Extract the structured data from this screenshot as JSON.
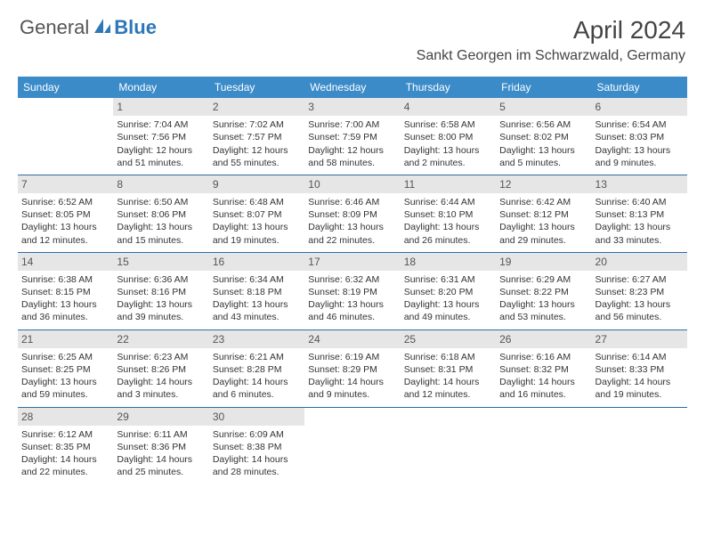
{
  "logo": {
    "part1": "General",
    "part2": "Blue"
  },
  "title": "April 2024",
  "location": "Sankt Georgen im Schwarzwald, Germany",
  "colors": {
    "header_bg": "#3b8bc9",
    "header_text": "#ffffff",
    "daynum_bg": "#e6e6e6",
    "row_border": "#2e6da4",
    "brand_blue": "#2e77b8",
    "text": "#333333"
  },
  "weekdays": [
    "Sunday",
    "Monday",
    "Tuesday",
    "Wednesday",
    "Thursday",
    "Friday",
    "Saturday"
  ],
  "grid": {
    "first_weekday_index": 1,
    "days": [
      {
        "n": 1,
        "sr": "7:04 AM",
        "ss": "7:56 PM",
        "dl": "12 hours and 51 minutes."
      },
      {
        "n": 2,
        "sr": "7:02 AM",
        "ss": "7:57 PM",
        "dl": "12 hours and 55 minutes."
      },
      {
        "n": 3,
        "sr": "7:00 AM",
        "ss": "7:59 PM",
        "dl": "12 hours and 58 minutes."
      },
      {
        "n": 4,
        "sr": "6:58 AM",
        "ss": "8:00 PM",
        "dl": "13 hours and 2 minutes."
      },
      {
        "n": 5,
        "sr": "6:56 AM",
        "ss": "8:02 PM",
        "dl": "13 hours and 5 minutes."
      },
      {
        "n": 6,
        "sr": "6:54 AM",
        "ss": "8:03 PM",
        "dl": "13 hours and 9 minutes."
      },
      {
        "n": 7,
        "sr": "6:52 AM",
        "ss": "8:05 PM",
        "dl": "13 hours and 12 minutes."
      },
      {
        "n": 8,
        "sr": "6:50 AM",
        "ss": "8:06 PM",
        "dl": "13 hours and 15 minutes."
      },
      {
        "n": 9,
        "sr": "6:48 AM",
        "ss": "8:07 PM",
        "dl": "13 hours and 19 minutes."
      },
      {
        "n": 10,
        "sr": "6:46 AM",
        "ss": "8:09 PM",
        "dl": "13 hours and 22 minutes."
      },
      {
        "n": 11,
        "sr": "6:44 AM",
        "ss": "8:10 PM",
        "dl": "13 hours and 26 minutes."
      },
      {
        "n": 12,
        "sr": "6:42 AM",
        "ss": "8:12 PM",
        "dl": "13 hours and 29 minutes."
      },
      {
        "n": 13,
        "sr": "6:40 AM",
        "ss": "8:13 PM",
        "dl": "13 hours and 33 minutes."
      },
      {
        "n": 14,
        "sr": "6:38 AM",
        "ss": "8:15 PM",
        "dl": "13 hours and 36 minutes."
      },
      {
        "n": 15,
        "sr": "6:36 AM",
        "ss": "8:16 PM",
        "dl": "13 hours and 39 minutes."
      },
      {
        "n": 16,
        "sr": "6:34 AM",
        "ss": "8:18 PM",
        "dl": "13 hours and 43 minutes."
      },
      {
        "n": 17,
        "sr": "6:32 AM",
        "ss": "8:19 PM",
        "dl": "13 hours and 46 minutes."
      },
      {
        "n": 18,
        "sr": "6:31 AM",
        "ss": "8:20 PM",
        "dl": "13 hours and 49 minutes."
      },
      {
        "n": 19,
        "sr": "6:29 AM",
        "ss": "8:22 PM",
        "dl": "13 hours and 53 minutes."
      },
      {
        "n": 20,
        "sr": "6:27 AM",
        "ss": "8:23 PM",
        "dl": "13 hours and 56 minutes."
      },
      {
        "n": 21,
        "sr": "6:25 AM",
        "ss": "8:25 PM",
        "dl": "13 hours and 59 minutes."
      },
      {
        "n": 22,
        "sr": "6:23 AM",
        "ss": "8:26 PM",
        "dl": "14 hours and 3 minutes."
      },
      {
        "n": 23,
        "sr": "6:21 AM",
        "ss": "8:28 PM",
        "dl": "14 hours and 6 minutes."
      },
      {
        "n": 24,
        "sr": "6:19 AM",
        "ss": "8:29 PM",
        "dl": "14 hours and 9 minutes."
      },
      {
        "n": 25,
        "sr": "6:18 AM",
        "ss": "8:31 PM",
        "dl": "14 hours and 12 minutes."
      },
      {
        "n": 26,
        "sr": "6:16 AM",
        "ss": "8:32 PM",
        "dl": "14 hours and 16 minutes."
      },
      {
        "n": 27,
        "sr": "6:14 AM",
        "ss": "8:33 PM",
        "dl": "14 hours and 19 minutes."
      },
      {
        "n": 28,
        "sr": "6:12 AM",
        "ss": "8:35 PM",
        "dl": "14 hours and 22 minutes."
      },
      {
        "n": 29,
        "sr": "6:11 AM",
        "ss": "8:36 PM",
        "dl": "14 hours and 25 minutes."
      },
      {
        "n": 30,
        "sr": "6:09 AM",
        "ss": "8:38 PM",
        "dl": "14 hours and 28 minutes."
      }
    ]
  },
  "labels": {
    "sunrise": "Sunrise:",
    "sunset": "Sunset:",
    "daylight": "Daylight:"
  }
}
